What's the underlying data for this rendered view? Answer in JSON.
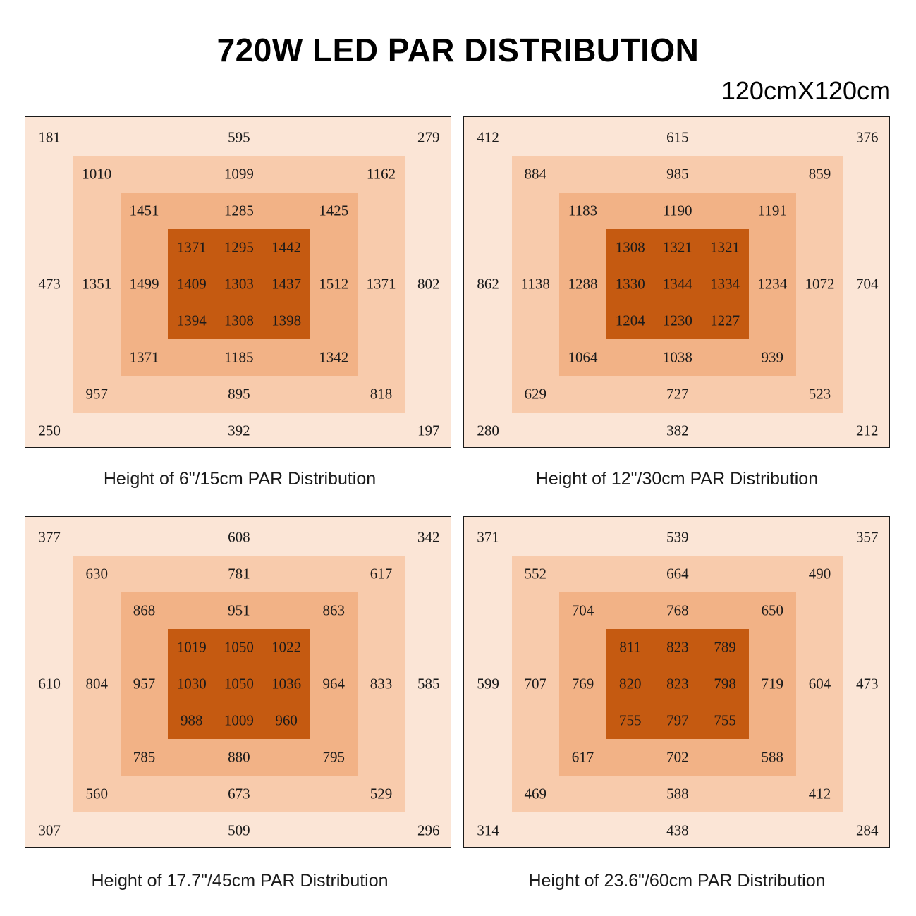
{
  "header": {
    "title": "720W LED PAR DISTRIBUTION",
    "coverage": "120cmX120cm"
  },
  "colors": {
    "outer": "#fbe5d6",
    "ring1": "#f8cbac",
    "ring2": "#f2b286",
    "core": "#c55a11"
  },
  "chart_data": [
    {
      "type": "heatmap",
      "title": "Height of 6\"/15cm PAR Distribution",
      "height_in": 6,
      "height_cm": 15,
      "points": [
        {
          "r": 0,
          "c": 0,
          "v": 181
        },
        {
          "r": 0,
          "c": 4,
          "v": 595
        },
        {
          "r": 0,
          "c": 8,
          "v": 279
        },
        {
          "r": 1,
          "c": 1,
          "v": 1010
        },
        {
          "r": 1,
          "c": 4,
          "v": 1099
        },
        {
          "r": 1,
          "c": 7,
          "v": 1162
        },
        {
          "r": 2,
          "c": 2,
          "v": 1451
        },
        {
          "r": 2,
          "c": 4,
          "v": 1285
        },
        {
          "r": 2,
          "c": 6,
          "v": 1425
        },
        {
          "r": 3,
          "c": 3,
          "v": 1371
        },
        {
          "r": 3,
          "c": 4,
          "v": 1295
        },
        {
          "r": 3,
          "c": 5,
          "v": 1442
        },
        {
          "r": 4,
          "c": 0,
          "v": 473
        },
        {
          "r": 4,
          "c": 1,
          "v": 1351
        },
        {
          "r": 4,
          "c": 2,
          "v": 1499
        },
        {
          "r": 4,
          "c": 3,
          "v": 1409
        },
        {
          "r": 4,
          "c": 4,
          "v": 1303
        },
        {
          "r": 4,
          "c": 5,
          "v": 1437
        },
        {
          "r": 4,
          "c": 6,
          "v": 1512
        },
        {
          "r": 4,
          "c": 7,
          "v": 1371
        },
        {
          "r": 4,
          "c": 8,
          "v": 802
        },
        {
          "r": 5,
          "c": 3,
          "v": 1394
        },
        {
          "r": 5,
          "c": 4,
          "v": 1308
        },
        {
          "r": 5,
          "c": 5,
          "v": 1398
        },
        {
          "r": 6,
          "c": 2,
          "v": 1371
        },
        {
          "r": 6,
          "c": 4,
          "v": 1185
        },
        {
          "r": 6,
          "c": 6,
          "v": 1342
        },
        {
          "r": 7,
          "c": 1,
          "v": 957
        },
        {
          "r": 7,
          "c": 4,
          "v": 895
        },
        {
          "r": 7,
          "c": 7,
          "v": 818
        },
        {
          "r": 8,
          "c": 0,
          "v": 250
        },
        {
          "r": 8,
          "c": 4,
          "v": 392
        },
        {
          "r": 8,
          "c": 8,
          "v": 197
        }
      ]
    },
    {
      "type": "heatmap",
      "title": "Height of 12\"/30cm PAR Distribution",
      "height_in": 12,
      "height_cm": 30,
      "points": [
        {
          "r": 0,
          "c": 0,
          "v": 412
        },
        {
          "r": 0,
          "c": 4,
          "v": 615
        },
        {
          "r": 0,
          "c": 8,
          "v": 376
        },
        {
          "r": 1,
          "c": 1,
          "v": 884
        },
        {
          "r": 1,
          "c": 4,
          "v": 985
        },
        {
          "r": 1,
          "c": 7,
          "v": 859
        },
        {
          "r": 2,
          "c": 2,
          "v": 1183
        },
        {
          "r": 2,
          "c": 4,
          "v": 1190
        },
        {
          "r": 2,
          "c": 6,
          "v": 1191
        },
        {
          "r": 3,
          "c": 3,
          "v": 1308
        },
        {
          "r": 3,
          "c": 4,
          "v": 1321
        },
        {
          "r": 3,
          "c": 5,
          "v": 1321
        },
        {
          "r": 4,
          "c": 0,
          "v": 862
        },
        {
          "r": 4,
          "c": 1,
          "v": 1138
        },
        {
          "r": 4,
          "c": 2,
          "v": 1288
        },
        {
          "r": 4,
          "c": 3,
          "v": 1330
        },
        {
          "r": 4,
          "c": 4,
          "v": 1344
        },
        {
          "r": 4,
          "c": 5,
          "v": 1334
        },
        {
          "r": 4,
          "c": 6,
          "v": 1234
        },
        {
          "r": 4,
          "c": 7,
          "v": 1072
        },
        {
          "r": 4,
          "c": 8,
          "v": 704
        },
        {
          "r": 5,
          "c": 3,
          "v": 1204
        },
        {
          "r": 5,
          "c": 4,
          "v": 1230
        },
        {
          "r": 5,
          "c": 5,
          "v": 1227
        },
        {
          "r": 6,
          "c": 2,
          "v": 1064
        },
        {
          "r": 6,
          "c": 4,
          "v": 1038
        },
        {
          "r": 6,
          "c": 6,
          "v": 939
        },
        {
          "r": 7,
          "c": 1,
          "v": 629
        },
        {
          "r": 7,
          "c": 4,
          "v": 727
        },
        {
          "r": 7,
          "c": 7,
          "v": 523
        },
        {
          "r": 8,
          "c": 0,
          "v": 280
        },
        {
          "r": 8,
          "c": 4,
          "v": 382
        },
        {
          "r": 8,
          "c": 8,
          "v": 212
        }
      ]
    },
    {
      "type": "heatmap",
      "title": "Height of 17.7\"/45cm PAR Distribution",
      "height_in": 17.7,
      "height_cm": 45,
      "points": [
        {
          "r": 0,
          "c": 0,
          "v": 377
        },
        {
          "r": 0,
          "c": 4,
          "v": 608
        },
        {
          "r": 0,
          "c": 8,
          "v": 342
        },
        {
          "r": 1,
          "c": 1,
          "v": 630
        },
        {
          "r": 1,
          "c": 4,
          "v": 781
        },
        {
          "r": 1,
          "c": 7,
          "v": 617
        },
        {
          "r": 2,
          "c": 2,
          "v": 868
        },
        {
          "r": 2,
          "c": 4,
          "v": 951
        },
        {
          "r": 2,
          "c": 6,
          "v": 863
        },
        {
          "r": 3,
          "c": 3,
          "v": 1019
        },
        {
          "r": 3,
          "c": 4,
          "v": 1050
        },
        {
          "r": 3,
          "c": 5,
          "v": 1022
        },
        {
          "r": 4,
          "c": 0,
          "v": 610
        },
        {
          "r": 4,
          "c": 1,
          "v": 804
        },
        {
          "r": 4,
          "c": 2,
          "v": 957
        },
        {
          "r": 4,
          "c": 3,
          "v": 1030
        },
        {
          "r": 4,
          "c": 4,
          "v": 1050
        },
        {
          "r": 4,
          "c": 5,
          "v": 1036
        },
        {
          "r": 4,
          "c": 6,
          "v": 964
        },
        {
          "r": 4,
          "c": 7,
          "v": 833
        },
        {
          "r": 4,
          "c": 8,
          "v": 585
        },
        {
          "r": 5,
          "c": 3,
          "v": 988
        },
        {
          "r": 5,
          "c": 4,
          "v": 1009
        },
        {
          "r": 5,
          "c": 5,
          "v": 960
        },
        {
          "r": 6,
          "c": 2,
          "v": 785
        },
        {
          "r": 6,
          "c": 4,
          "v": 880
        },
        {
          "r": 6,
          "c": 6,
          "v": 795
        },
        {
          "r": 7,
          "c": 1,
          "v": 560
        },
        {
          "r": 7,
          "c": 4,
          "v": 673
        },
        {
          "r": 7,
          "c": 7,
          "v": 529
        },
        {
          "r": 8,
          "c": 0,
          "v": 307
        },
        {
          "r": 8,
          "c": 4,
          "v": 509
        },
        {
          "r": 8,
          "c": 8,
          "v": 296
        }
      ]
    },
    {
      "type": "heatmap",
      "title": "Height of 23.6\"/60cm PAR Distribution",
      "height_in": 23.6,
      "height_cm": 60,
      "points": [
        {
          "r": 0,
          "c": 0,
          "v": 371
        },
        {
          "r": 0,
          "c": 4,
          "v": 539
        },
        {
          "r": 0,
          "c": 8,
          "v": 357
        },
        {
          "r": 1,
          "c": 1,
          "v": 552
        },
        {
          "r": 1,
          "c": 4,
          "v": 664
        },
        {
          "r": 1,
          "c": 7,
          "v": 490
        },
        {
          "r": 2,
          "c": 2,
          "v": 704
        },
        {
          "r": 2,
          "c": 4,
          "v": 768
        },
        {
          "r": 2,
          "c": 6,
          "v": 650
        },
        {
          "r": 3,
          "c": 3,
          "v": 811
        },
        {
          "r": 3,
          "c": 4,
          "v": 823
        },
        {
          "r": 3,
          "c": 5,
          "v": 789
        },
        {
          "r": 4,
          "c": 0,
          "v": 599
        },
        {
          "r": 4,
          "c": 1,
          "v": 707
        },
        {
          "r": 4,
          "c": 2,
          "v": 769
        },
        {
          "r": 4,
          "c": 3,
          "v": 820
        },
        {
          "r": 4,
          "c": 4,
          "v": 823
        },
        {
          "r": 4,
          "c": 5,
          "v": 798
        },
        {
          "r": 4,
          "c": 6,
          "v": 719
        },
        {
          "r": 4,
          "c": 7,
          "v": 604
        },
        {
          "r": 4,
          "c": 8,
          "v": 473
        },
        {
          "r": 5,
          "c": 3,
          "v": 755
        },
        {
          "r": 5,
          "c": 4,
          "v": 797
        },
        {
          "r": 5,
          "c": 5,
          "v": 755
        },
        {
          "r": 6,
          "c": 2,
          "v": 617
        },
        {
          "r": 6,
          "c": 4,
          "v": 702
        },
        {
          "r": 6,
          "c": 6,
          "v": 588
        },
        {
          "r": 7,
          "c": 1,
          "v": 469
        },
        {
          "r": 7,
          "c": 4,
          "v": 588
        },
        {
          "r": 7,
          "c": 7,
          "v": 412
        },
        {
          "r": 8,
          "c": 0,
          "v": 314
        },
        {
          "r": 8,
          "c": 4,
          "v": 438
        },
        {
          "r": 8,
          "c": 8,
          "v": 284
        }
      ]
    }
  ]
}
